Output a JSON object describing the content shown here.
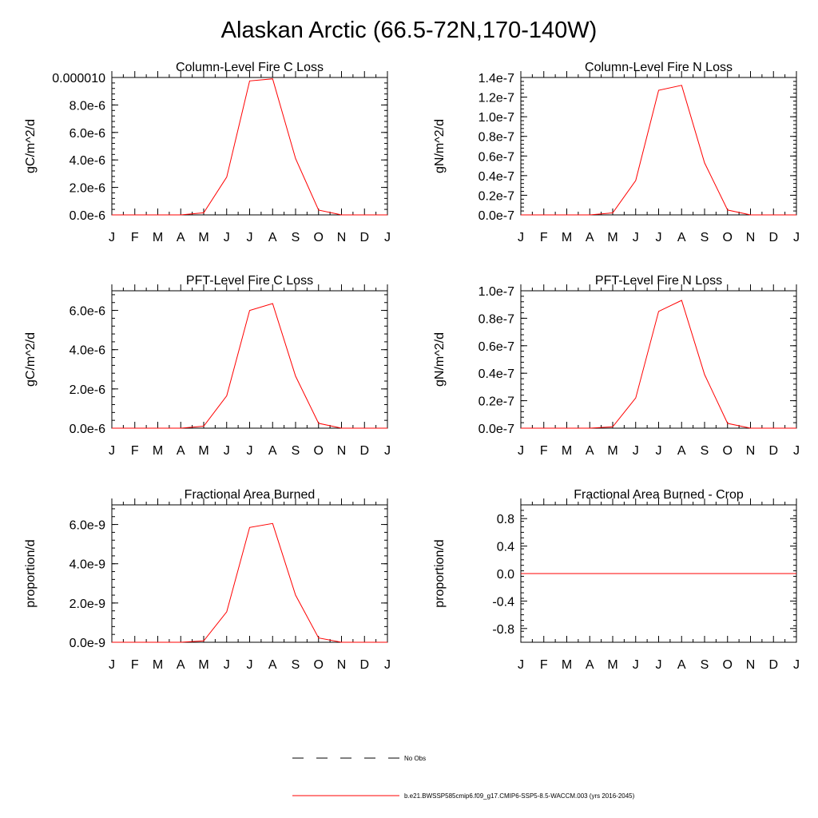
{
  "figure": {
    "title": "Alaskan Arctic (66.5-72N,170-140W)"
  },
  "legend": [
    {
      "label": "No Obs",
      "color": "#000000",
      "style": "dashed"
    },
    {
      "label": "b.e21.BWSSP585cmip6.f09_g17.CMIP6-SSP5-8.5-WACCM.003 (yrs 2016-2045)",
      "color": "#ff0000",
      "style": "solid"
    }
  ],
  "chart_data": [
    {
      "type": "line",
      "title": "Column-Level Fire C Loss",
      "ylabel": "gC/m^2/d",
      "categories": [
        "J",
        "F",
        "M",
        "A",
        "M",
        "J",
        "J",
        "A",
        "S",
        "O",
        "N",
        "D",
        "J"
      ],
      "ylim": [
        0,
        1e-05
      ],
      "yticks": [
        0,
        2e-06,
        4e-06,
        6e-06,
        8e-06,
        1e-05
      ],
      "ytick_labels": [
        "0.0e-6",
        "2.0e-6",
        "4.0e-6",
        "6.0e-6",
        "8.0e-6",
        "0.000010"
      ],
      "series": [
        {
          "color": "#ff0000",
          "values": [
            0,
            0,
            0,
            0,
            1.5e-07,
            2.75e-06,
            9.75e-06,
            9.9e-06,
            4.1e-06,
            3.5e-07,
            0,
            0,
            0
          ]
        }
      ]
    },
    {
      "type": "line",
      "title": "Column-Level Fire N Loss",
      "ylabel": "gN/m^2/d",
      "categories": [
        "J",
        "F",
        "M",
        "A",
        "M",
        "J",
        "J",
        "A",
        "S",
        "O",
        "N",
        "D",
        "J"
      ],
      "ylim": [
        0,
        1.4e-07
      ],
      "yticks": [
        0,
        2e-08,
        4e-08,
        6e-08,
        8e-08,
        1e-07,
        1.2e-07,
        1.4e-07
      ],
      "ytick_labels": [
        "0.0e-7",
        "0.2e-7",
        "0.4e-7",
        "0.6e-7",
        "0.8e-7",
        "1.0e-7",
        "1.2e-7",
        "1.4e-7"
      ],
      "series": [
        {
          "color": "#ff0000",
          "values": [
            0,
            0,
            0,
            0,
            2e-09,
            3.5e-08,
            1.27e-07,
            1.32e-07,
            5.3e-08,
            5e-09,
            0,
            0,
            0
          ]
        }
      ]
    },
    {
      "type": "line",
      "title": "PFT-Level Fire C Loss",
      "ylabel": "gC/m^2/d",
      "categories": [
        "J",
        "F",
        "M",
        "A",
        "M",
        "J",
        "J",
        "A",
        "S",
        "O",
        "N",
        "D",
        "J"
      ],
      "ylim": [
        0,
        7e-06
      ],
      "yticks": [
        0,
        2e-06,
        4e-06,
        6e-06
      ],
      "ytick_labels": [
        "0.0e-6",
        "2.0e-6",
        "4.0e-6",
        "6.0e-6"
      ],
      "series": [
        {
          "color": "#ff0000",
          "values": [
            0,
            0,
            0,
            0,
            1e-07,
            1.65e-06,
            6e-06,
            6.35e-06,
            2.65e-06,
            2.5e-07,
            0,
            0,
            0
          ]
        }
      ]
    },
    {
      "type": "line",
      "title": "PFT-Level Fire N Loss",
      "ylabel": "gN/m^2/d",
      "categories": [
        "J",
        "F",
        "M",
        "A",
        "M",
        "J",
        "J",
        "A",
        "S",
        "O",
        "N",
        "D",
        "J"
      ],
      "ylim": [
        0,
        1e-07
      ],
      "yticks": [
        0,
        2e-08,
        4e-08,
        6e-08,
        8e-08,
        1e-07
      ],
      "ytick_labels": [
        "0.0e-7",
        "0.2e-7",
        "0.4e-7",
        "0.6e-7",
        "0.8e-7",
        "1.0e-7"
      ],
      "series": [
        {
          "color": "#ff0000",
          "values": [
            0,
            0,
            0,
            0,
            1e-09,
            2.2e-08,
            8.5e-08,
            9.3e-08,
            3.9e-08,
            3.5e-09,
            0,
            0,
            0
          ]
        }
      ]
    },
    {
      "type": "line",
      "title": "Fractional Area Burned",
      "ylabel": "proportion/d",
      "categories": [
        "J",
        "F",
        "M",
        "A",
        "M",
        "J",
        "J",
        "A",
        "S",
        "O",
        "N",
        "D",
        "J"
      ],
      "ylim": [
        0,
        7e-09
      ],
      "yticks": [
        0,
        2e-09,
        4e-09,
        6e-09
      ],
      "ytick_labels": [
        "0.0e-9",
        "2.0e-9",
        "4.0e-9",
        "6.0e-9"
      ],
      "series": [
        {
          "color": "#ff0000",
          "values": [
            0,
            0,
            0,
            0,
            7e-11,
            1.55e-09,
            5.85e-09,
            6.05e-09,
            2.4e-09,
            2.2e-10,
            0,
            0,
            0
          ]
        }
      ]
    },
    {
      "type": "line",
      "title": "Fractional Area Burned - Crop",
      "ylabel": "proportion/d",
      "categories": [
        "J",
        "F",
        "M",
        "A",
        "M",
        "J",
        "J",
        "A",
        "S",
        "O",
        "N",
        "D",
        "J"
      ],
      "ylim": [
        -1,
        1
      ],
      "yticks": [
        -0.8,
        -0.4,
        0,
        0.4,
        0.8
      ],
      "ytick_labels": [
        "-0.8",
        "-0.4",
        "0.0",
        "0.4",
        "0.8"
      ],
      "series": [
        {
          "color": "#ff0000",
          "values": [
            0,
            0,
            0,
            0,
            0,
            0,
            0,
            0,
            0,
            0,
            0,
            0,
            0
          ]
        }
      ]
    }
  ]
}
